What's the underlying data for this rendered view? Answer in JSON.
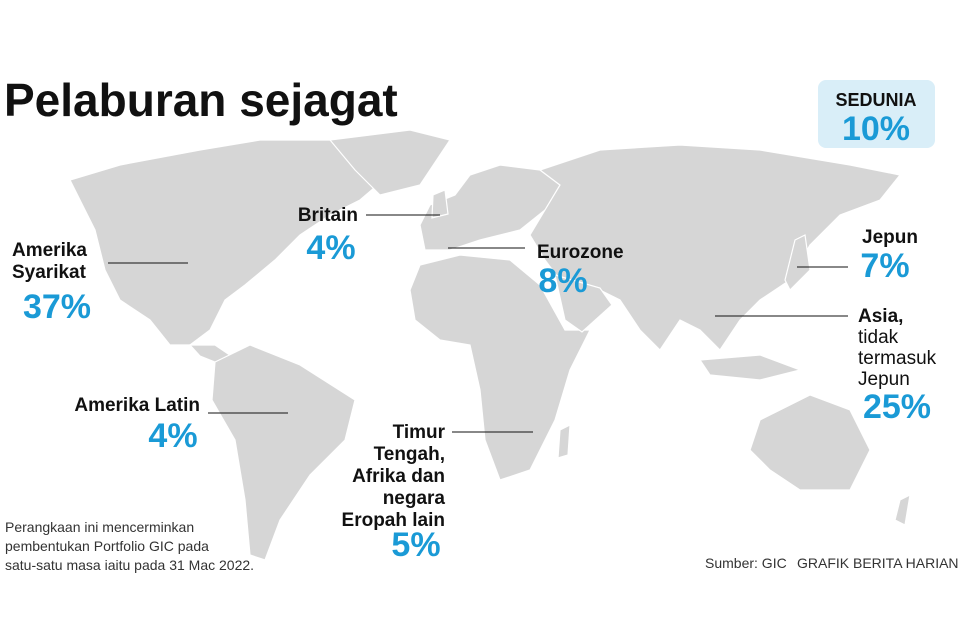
{
  "title": "Pelaburan sejagat",
  "world": {
    "label": "SEDUNIA",
    "value": "10%"
  },
  "regions": [
    {
      "name": [
        "Amerika",
        "Syarikat"
      ],
      "value": "37%"
    },
    {
      "name": [
        "Britain"
      ],
      "value": "4%"
    },
    {
      "name": [
        "Eurozone"
      ],
      "value": "8%"
    },
    {
      "name": [
        "Jepun"
      ],
      "value": "7%"
    },
    {
      "name": [
        "Asia,",
        "tidak",
        "termasuk",
        "Jepun"
      ],
      "value": "25%"
    },
    {
      "name": [
        "Amerika Latin"
      ],
      "value": "4%"
    },
    {
      "name": [
        "Timur",
        "Tengah,",
        "Afrika dan",
        "negara",
        "Eropah lain"
      ],
      "value": "5%"
    }
  ],
  "note": [
    "Perangkaan ini mencerminkan",
    "pembentukan Portfolio GIC pada",
    "satu-satu masa iaitu pada 31 Mac 2022."
  ],
  "source": "Sumber: GIC",
  "credit": "GRAFIK BERITA HARIAN"
}
